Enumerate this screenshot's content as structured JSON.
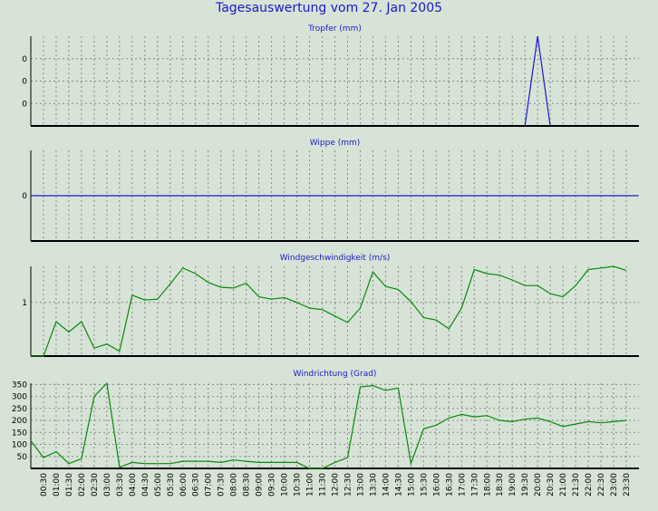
{
  "page": {
    "title": "Tagesauswertung vom 27. Jan 2005"
  },
  "colors": {
    "background": "#d6e3d6",
    "title": "#1a1acc",
    "tropfer_line": "#1a1acc",
    "wippe_line": "#1a1acc",
    "wind_line": "#0a8a0a",
    "grid": "#8a8a8a",
    "axis": "#000000"
  },
  "time_labels": [
    "00:30",
    "01:00",
    "01:30",
    "02:00",
    "02:30",
    "03:00",
    "03:30",
    "04:00",
    "04:30",
    "05:00",
    "05:30",
    "06:00",
    "06:30",
    "07:00",
    "07:30",
    "08:00",
    "08:30",
    "09:00",
    "09:30",
    "10:00",
    "10:30",
    "11:00",
    "11:30",
    "12:00",
    "12:30",
    "13:00",
    "13:30",
    "14:00",
    "14:30",
    "15:00",
    "15:30",
    "16:00",
    "16:30",
    "17:00",
    "17:30",
    "18:00",
    "18:30",
    "19:00",
    "19:30",
    "20:00",
    "20:30",
    "21:00",
    "21:30",
    "22:00",
    "22:30",
    "23:00",
    "23:30"
  ],
  "chart_data": [
    {
      "type": "line",
      "title": "Tropfer (mm)",
      "x": [
        "19:30",
        "20:00",
        "20:30"
      ],
      "series": [
        {
          "values": [
            0,
            1,
            0
          ]
        }
      ],
      "ylim": [
        0,
        1
      ],
      "yticks": [
        {
          "value": 0.25,
          "label": "0"
        },
        {
          "value": 0.5,
          "label": "0"
        },
        {
          "value": 0.75,
          "label": "0"
        }
      ],
      "grid": true
    },
    {
      "type": "line",
      "title": "Wippe (mm)",
      "x": [
        "00:00",
        "23:59"
      ],
      "series": [
        {
          "values": [
            0,
            0
          ]
        }
      ],
      "ylim": [
        -1,
        1
      ],
      "yticks": [
        {
          "value": 0,
          "label": "0"
        }
      ],
      "grid": true
    },
    {
      "type": "line",
      "title": "Windgeschwindigkeit (m/s)",
      "x": [
        "00:00",
        "00:30",
        "01:00",
        "01:30",
        "02:00",
        "02:30",
        "03:00",
        "03:30",
        "04:00",
        "04:30",
        "05:00",
        "05:30",
        "06:00",
        "06:30",
        "07:00",
        "07:30",
        "08:00",
        "08:30",
        "09:00",
        "09:30",
        "10:00",
        "10:30",
        "11:00",
        "11:30",
        "12:00",
        "12:30",
        "13:00",
        "13:30",
        "14:00",
        "14:30",
        "15:00",
        "15:30",
        "16:00",
        "16:30",
        "17:00",
        "17:30",
        "18:00",
        "18:30",
        "19:00",
        "19:30",
        "20:00",
        "20:30",
        "21:00",
        "21:30",
        "22:00",
        "22:30",
        "23:00",
        "23:30"
      ],
      "series": [
        {
          "values": [
            0.0,
            0.0,
            0.43,
            0.3,
            0.43,
            0.1,
            0.15,
            0.06,
            0.76,
            0.7,
            0.71,
            0.9,
            1.1,
            1.03,
            0.92,
            0.86,
            0.85,
            0.91,
            0.74,
            0.71,
            0.73,
            0.67,
            0.6,
            0.58,
            0.5,
            0.42,
            0.6,
            1.05,
            0.87,
            0.83,
            0.68,
            0.48,
            0.45,
            0.34,
            0.6,
            1.08,
            1.03,
            1.01,
            0.95,
            0.88,
            0.88,
            0.78,
            0.74,
            0.88,
            1.08,
            1.1,
            1.12,
            1.07
          ]
        }
      ],
      "ylim": [
        0,
        1.12
      ],
      "yticks": [
        {
          "value": 0.67,
          "label": "1"
        }
      ],
      "grid": true
    },
    {
      "type": "line",
      "title": "Windrichtung (Grad)",
      "x": [
        "00:00",
        "00:30",
        "01:00",
        "01:30",
        "02:00",
        "02:30",
        "03:00",
        "03:30",
        "04:00",
        "04:30",
        "05:00",
        "05:30",
        "06:00",
        "06:30",
        "07:00",
        "07:30",
        "08:00",
        "08:30",
        "09:00",
        "09:30",
        "10:00",
        "10:30",
        "11:00",
        "11:30",
        "12:00",
        "12:30",
        "13:00",
        "13:30",
        "14:00",
        "14:30",
        "15:00",
        "15:30",
        "16:00",
        "16:30",
        "17:00",
        "17:30",
        "18:00",
        "18:30",
        "19:00",
        "19:30",
        "20:00",
        "20:30",
        "21:00",
        "21:30",
        "22:00",
        "22:30",
        "23:00",
        "23:30"
      ],
      "series": [
        {
          "values": [
            115,
            45,
            70,
            20,
            40,
            300,
            355,
            5,
            25,
            20,
            20,
            20,
            30,
            30,
            30,
            25,
            35,
            30,
            25,
            25,
            25,
            25,
            0,
            0,
            25,
            45,
            340,
            345,
            325,
            335,
            20,
            165,
            180,
            210,
            225,
            215,
            220,
            200,
            195,
            205,
            210,
            195,
            175,
            185,
            195,
            190,
            195,
            200
          ]
        }
      ],
      "ylim": [
        0,
        355
      ],
      "yticks": [
        {
          "value": 50,
          "label": "50"
        },
        {
          "value": 100,
          "label": "100"
        },
        {
          "value": 150,
          "label": "150"
        },
        {
          "value": 200,
          "label": "200"
        },
        {
          "value": 250,
          "label": "250"
        },
        {
          "value": 300,
          "label": "300"
        },
        {
          "value": 350,
          "label": "350"
        }
      ],
      "grid": true
    }
  ]
}
